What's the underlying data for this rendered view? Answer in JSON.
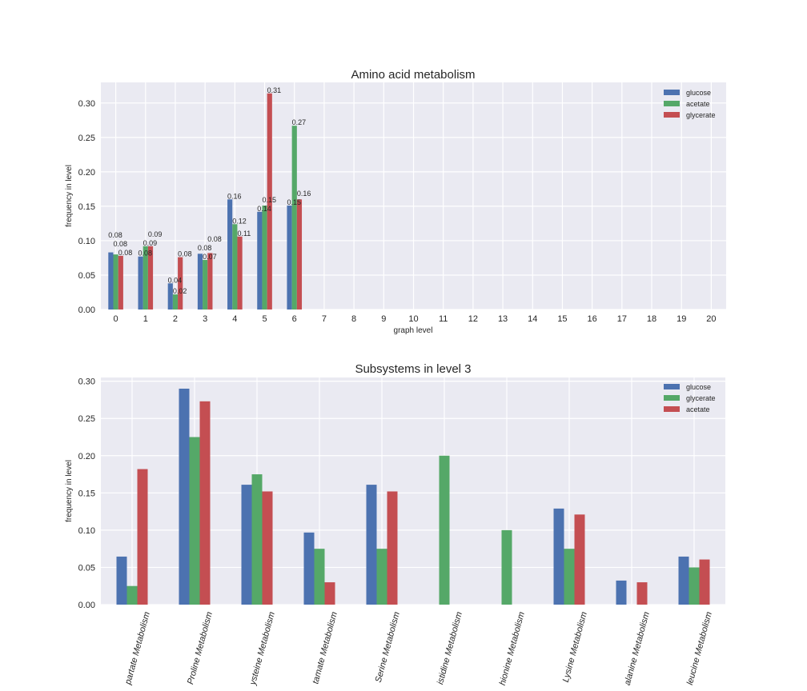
{
  "chart_data": [
    {
      "type": "bar",
      "title": "Amino acid metabolism",
      "xlabel": "graph level",
      "ylabel": "frequency in level",
      "ylim": [
        0,
        0.33
      ],
      "yticks": [
        "0.00",
        "0.05",
        "0.10",
        "0.15",
        "0.20",
        "0.25",
        "0.30"
      ],
      "categories": [
        "0",
        "1",
        "2",
        "3",
        "4",
        "5",
        "6",
        "7",
        "8",
        "9",
        "10",
        "11",
        "12",
        "13",
        "14",
        "15",
        "16",
        "17",
        "18",
        "19",
        "20"
      ],
      "grid": true,
      "legend_position": "top-right",
      "series": [
        {
          "name": "glucose",
          "color": "#4c72b0",
          "values": [
            0.083,
            0.077,
            0.038,
            0.081,
            0.16,
            0.142,
            0.151,
            0,
            0,
            0,
            0,
            0,
            0,
            0,
            0,
            0,
            0,
            0,
            0,
            0,
            0
          ],
          "labels": [
            "0.08",
            "0.08",
            "0.04",
            "0.08",
            "0.16",
            "0.14",
            "0.15"
          ]
        },
        {
          "name": "acetate",
          "color": "#55a868",
          "values": [
            0.08,
            0.092,
            0.022,
            0.072,
            0.124,
            0.151,
            0.267,
            0,
            0,
            0,
            0,
            0,
            0,
            0,
            0,
            0,
            0,
            0,
            0,
            0,
            0
          ],
          "labels": [
            "0.08",
            "0.09",
            "0.02",
            "0.07",
            "0.12",
            "0.15",
            "0.27"
          ]
        },
        {
          "name": "glycerate",
          "color": "#c44e52",
          "values": [
            0.078,
            0.092,
            0.076,
            0.082,
            0.106,
            0.314,
            0.16,
            0,
            0,
            0,
            0,
            0,
            0,
            0,
            0,
            0,
            0,
            0,
            0,
            0,
            0
          ],
          "labels": [
            "0.08",
            "0.09",
            "0.08",
            "0.08",
            "0.11",
            "0.31",
            "0.16"
          ]
        }
      ]
    },
    {
      "type": "bar",
      "title": "Subsystems in level 3",
      "xlabel": "",
      "ylabel": "frequency in level",
      "ylim": [
        0,
        0.305
      ],
      "yticks": [
        "0.00",
        "0.05",
        "0.10",
        "0.15",
        "0.20",
        "0.25",
        "0.30"
      ],
      "categories": [
        "partate Metabolism",
        "Proline Metabolism",
        "ysteine Metabolism",
        "tamate Metabolism",
        "Serine Metabolism",
        "istidine Metabolism",
        "hionine Metabolism",
        "Lysine Metabolism",
        "alanine Metabolism",
        "leucine Metabolism"
      ],
      "grid": true,
      "legend_position": "top-right",
      "series": [
        {
          "name": "glucose",
          "color": "#4c72b0",
          "values": [
            0.0645,
            0.29,
            0.161,
            0.0968,
            0.161,
            0,
            0,
            0.129,
            0.0323,
            0.0645
          ]
        },
        {
          "name": "glycerate",
          "color": "#55a868",
          "values": [
            0.025,
            0.225,
            0.175,
            0.075,
            0.075,
            0.2,
            0.1,
            0.075,
            0,
            0.05
          ]
        },
        {
          "name": "acetate",
          "color": "#c44e52",
          "values": [
            0.182,
            0.273,
            0.152,
            0.03,
            0.152,
            0,
            0,
            0.121,
            0.03,
            0.0606
          ]
        }
      ]
    }
  ]
}
